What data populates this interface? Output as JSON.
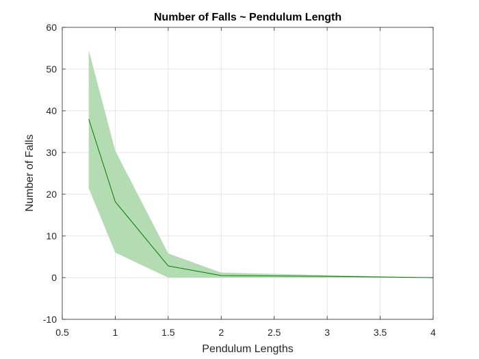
{
  "chart_data": {
    "type": "line",
    "title": "Number of Falls ~ Pendulum Length",
    "xlabel": "Pendulum Lengths",
    "ylabel": "Number of Falls",
    "xlim": [
      0.5,
      4
    ],
    "ylim": [
      -10,
      60
    ],
    "xticks": [
      0.5,
      1,
      1.5,
      2,
      2.5,
      3,
      3.5,
      4
    ],
    "yticks": [
      -10,
      0,
      10,
      20,
      30,
      40,
      50,
      60
    ],
    "grid": true,
    "series": [
      {
        "x": [
          0.75,
          1,
          1.5,
          2,
          3,
          4
        ],
        "y": [
          38,
          18.2,
          2.8,
          0.5,
          0.3,
          0
        ],
        "lower": [
          21.4,
          6,
          0,
          0,
          0,
          0
        ],
        "upper": [
          54.5,
          30.4,
          5.8,
          1.2,
          0.6,
          0
        ],
        "line_color": "#007a00",
        "band_color": "#b3dcb3"
      }
    ]
  }
}
